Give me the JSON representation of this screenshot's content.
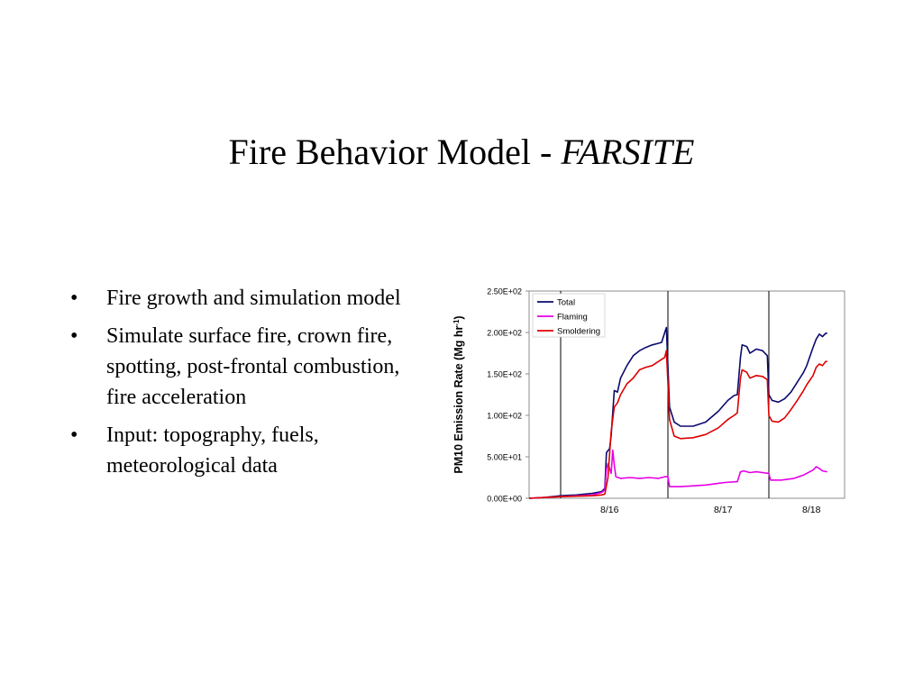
{
  "slide": {
    "title_main": "Fire Behavior Model - ",
    "title_italic": "FARSITE",
    "bullet_glyph": "•",
    "bullets": [
      "Fire growth and simulation model",
      "Simulate surface fire, crown fire, spotting, post-frontal combustion, fire acceleration",
      "Input: topography, fuels, meteorological data"
    ]
  },
  "chart_data": {
    "type": "line",
    "ylabel_main": "PM10 Emission Rate (Mg hr",
    "ylabel_sup": "-1",
    "ylabel_close": ")",
    "ylim": [
      0,
      250
    ],
    "y_ticks": [
      0,
      50,
      100,
      150,
      200,
      250
    ],
    "y_tick_labels": [
      "0.00E+00",
      "5.00E+01",
      "1.00E+02",
      "1.50E+02",
      "2.00E+02",
      "2.50E+02"
    ],
    "xlim": [
      0,
      100
    ],
    "x_tick_labels": [
      {
        "x": 25.5,
        "label": "8/16"
      },
      {
        "x": 61.5,
        "label": "8/17"
      },
      {
        "x": 89.5,
        "label": "8/18"
      }
    ],
    "day_boundaries": [
      10,
      44,
      76
    ],
    "legend_position": "top-left",
    "series": [
      {
        "name": "Total",
        "color": "#0a0a6e",
        "points": [
          [
            0,
            0
          ],
          [
            5,
            1
          ],
          [
            10,
            3
          ],
          [
            15,
            4
          ],
          [
            20,
            6
          ],
          [
            23,
            8
          ],
          [
            24,
            12
          ],
          [
            24.5,
            55
          ],
          [
            25.5,
            60
          ],
          [
            26,
            75
          ],
          [
            27,
            130
          ],
          [
            28,
            128
          ],
          [
            29,
            145
          ],
          [
            31,
            160
          ],
          [
            33,
            172
          ],
          [
            35,
            178
          ],
          [
            37,
            182
          ],
          [
            39,
            185
          ],
          [
            41,
            187
          ],
          [
            42,
            188
          ],
          [
            43,
            200
          ],
          [
            43.5,
            206
          ],
          [
            44,
            160
          ],
          [
            44.5,
            110
          ],
          [
            46,
            92
          ],
          [
            48,
            87
          ],
          [
            52,
            87
          ],
          [
            56,
            92
          ],
          [
            60,
            105
          ],
          [
            63,
            118
          ],
          [
            65,
            124
          ],
          [
            66,
            125
          ],
          [
            67,
            170
          ],
          [
            67.5,
            185
          ],
          [
            69,
            183
          ],
          [
            70,
            175
          ],
          [
            72,
            180
          ],
          [
            74,
            178
          ],
          [
            75.5,
            172
          ],
          [
            76,
            125
          ],
          [
            77,
            118
          ],
          [
            79,
            116
          ],
          [
            81,
            120
          ],
          [
            83,
            128
          ],
          [
            85,
            140
          ],
          [
            87,
            152
          ],
          [
            88,
            160
          ],
          [
            90,
            182
          ],
          [
            91,
            192
          ],
          [
            92,
            198
          ],
          [
            93,
            195
          ],
          [
            94,
            199
          ],
          [
            94.5,
            199
          ]
        ]
      },
      {
        "name": "Flaming",
        "color": "#e600e6",
        "points": [
          [
            0,
            0
          ],
          [
            10,
            2
          ],
          [
            20,
            4
          ],
          [
            23,
            7
          ],
          [
            24,
            10
          ],
          [
            24.5,
            35
          ],
          [
            25,
            42
          ],
          [
            26,
            30
          ],
          [
            26.5,
            58
          ],
          [
            27,
            40
          ],
          [
            27.5,
            26
          ],
          [
            29,
            24
          ],
          [
            32,
            25
          ],
          [
            35,
            24
          ],
          [
            38,
            25
          ],
          [
            41,
            24
          ],
          [
            43,
            26
          ],
          [
            44,
            26
          ],
          [
            44.5,
            14
          ],
          [
            48,
            14
          ],
          [
            52,
            15
          ],
          [
            56,
            16
          ],
          [
            60,
            18
          ],
          [
            62,
            19
          ],
          [
            66,
            20
          ],
          [
            67,
            32
          ],
          [
            68,
            33
          ],
          [
            70,
            31
          ],
          [
            72,
            32
          ],
          [
            74,
            31
          ],
          [
            76,
            30
          ],
          [
            76.5,
            22
          ],
          [
            80,
            22
          ],
          [
            84,
            24
          ],
          [
            87,
            28
          ],
          [
            90,
            34
          ],
          [
            91,
            38
          ],
          [
            92,
            36
          ],
          [
            93,
            33
          ],
          [
            94.5,
            32
          ]
        ]
      },
      {
        "name": "Smoldering",
        "color": "#dd0000",
        "points": [
          [
            0,
            0
          ],
          [
            10,
            2
          ],
          [
            20,
            3
          ],
          [
            23,
            4
          ],
          [
            24,
            5
          ],
          [
            25,
            25
          ],
          [
            26,
            80
          ],
          [
            27,
            110
          ],
          [
            28,
            115
          ],
          [
            29,
            125
          ],
          [
            31,
            138
          ],
          [
            33,
            145
          ],
          [
            35,
            155
          ],
          [
            37,
            158
          ],
          [
            39,
            160
          ],
          [
            41,
            165
          ],
          [
            43,
            170
          ],
          [
            43.5,
            178
          ],
          [
            44,
            140
          ],
          [
            44.5,
            95
          ],
          [
            46,
            75
          ],
          [
            48,
            72
          ],
          [
            52,
            73
          ],
          [
            56,
            77
          ],
          [
            60,
            85
          ],
          [
            63,
            95
          ],
          [
            65,
            100
          ],
          [
            66,
            103
          ],
          [
            67,
            145
          ],
          [
            67.5,
            155
          ],
          [
            69,
            152
          ],
          [
            70,
            145
          ],
          [
            72,
            148
          ],
          [
            74,
            147
          ],
          [
            75.5,
            143
          ],
          [
            76,
            100
          ],
          [
            77,
            93
          ],
          [
            79,
            92
          ],
          [
            81,
            97
          ],
          [
            83,
            107
          ],
          [
            85,
            118
          ],
          [
            87,
            130
          ],
          [
            88,
            137
          ],
          [
            90,
            148
          ],
          [
            91,
            158
          ],
          [
            92,
            162
          ],
          [
            93,
            160
          ],
          [
            94,
            165
          ],
          [
            94.5,
            165
          ]
        ]
      }
    ]
  }
}
